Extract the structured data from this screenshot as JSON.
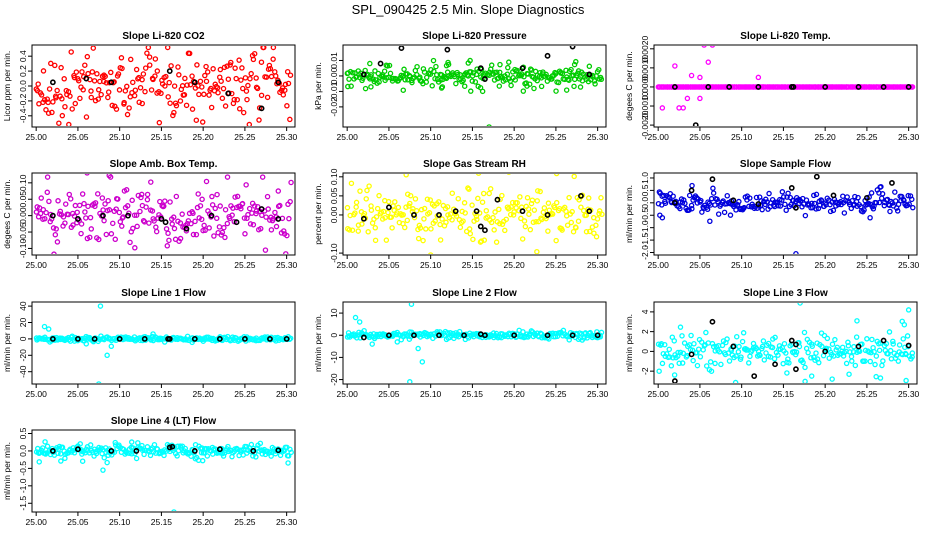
{
  "title": "SPL_090425  2.5 Min. Slope Diagnostics",
  "colors": {
    "axis": "#000000",
    "marker_default": "#000000"
  },
  "chart_data": [
    {
      "type": "scatter",
      "title": "Slope Li-820 CO2",
      "ylabel": "Licor ppm per min.",
      "xlim": [
        24.995,
        25.31
      ],
      "ylim": [
        -0.55,
        0.55
      ],
      "xticks": [
        "25.00",
        "25.05",
        "25.10",
        "25.15",
        "25.20",
        "25.25",
        "25.30"
      ],
      "xtick_values": [
        25.0,
        25.05,
        25.1,
        25.15,
        25.2,
        25.25,
        25.3
      ],
      "yticks": [
        "-0.4",
        "-0.2",
        "0.0",
        "0.2",
        "0.4"
      ],
      "ytick_values": [
        -0.4,
        -0.2,
        0,
        0.2,
        0.4
      ],
      "color": "#ff0000",
      "spread": 0.22,
      "outlier_count": 6,
      "outliers": [],
      "highlight_points": [
        [
          25.02,
          0.05
        ],
        [
          25.06,
          0.1
        ],
        [
          25.09,
          0.05
        ],
        [
          25.16,
          0.2
        ],
        [
          25.19,
          0.05
        ],
        [
          25.23,
          -0.1
        ],
        [
          25.27,
          -0.3
        ],
        [
          25.29,
          0.05
        ]
      ]
    },
    {
      "type": "scatter",
      "title": "Slope Li-820 Pressure",
      "ylabel": "kPa per min.",
      "xlim": [
        24.995,
        25.31
      ],
      "ylim": [
        -0.033,
        0.02
      ],
      "xticks": [
        "25.00",
        "25.05",
        "25.10",
        "25.15",
        "25.20",
        "25.25",
        "25.30"
      ],
      "xtick_values": [
        25.0,
        25.05,
        25.1,
        25.15,
        25.2,
        25.25,
        25.3
      ],
      "yticks": [
        "-0.02",
        "-0.01",
        "0.00",
        "0.01"
      ],
      "ytick_values": [
        -0.02,
        -0.01,
        0,
        0.01
      ],
      "color": "#00cc00",
      "spread": 0.0025,
      "outlier_count": 30,
      "outliers": [
        [
          25.17,
          -0.033
        ]
      ],
      "highlight_points": [
        [
          25.02,
          0.001
        ],
        [
          25.04,
          0.008
        ],
        [
          25.065,
          0.018
        ],
        [
          25.12,
          0.017
        ],
        [
          25.16,
          0.005
        ],
        [
          25.165,
          -0.002
        ],
        [
          25.21,
          0.005
        ],
        [
          25.24,
          0.013
        ],
        [
          25.27,
          0.019
        ],
        [
          25.29,
          0.001
        ]
      ]
    },
    {
      "type": "scatter",
      "title": "Slope Li-820 Temp.",
      "ylabel": "degees C per min.",
      "xlim": [
        24.995,
        25.31
      ],
      "ylim": [
        -0.0021,
        0.0022
      ],
      "xticks": [
        "25.00",
        "25.05",
        "25.10",
        "25.15",
        "25.20",
        "25.25",
        "25.30"
      ],
      "xtick_values": [
        25.0,
        25.05,
        25.1,
        25.15,
        25.2,
        25.25,
        25.3
      ],
      "yticks": [
        "-0.0020",
        "-0.0010",
        "0.0000",
        "0.0010",
        "0.0020"
      ],
      "ytick_values": [
        -0.002,
        -0.001,
        0,
        0.001,
        0.002
      ],
      "color": "#ff00ff",
      "spread": 0.0,
      "outlier_count": 0,
      "outliers": [
        [
          25.005,
          -0.0011
        ],
        [
          25.02,
          0.0011
        ],
        [
          25.035,
          -0.0006
        ],
        [
          25.04,
          0.0006
        ],
        [
          25.025,
          -0.0011
        ],
        [
          25.05,
          0.0005
        ],
        [
          25.06,
          0.0013
        ],
        [
          25.065,
          0.0022
        ],
        [
          25.055,
          0.0022
        ],
        [
          25.05,
          -0.0006
        ],
        [
          25.03,
          -0.0011
        ],
        [
          25.12,
          0.0005
        ]
      ],
      "highlight_points": [
        [
          25.02,
          0.0
        ],
        [
          25.045,
          -0.002
        ],
        [
          25.06,
          0.0
        ],
        [
          25.085,
          0.0
        ],
        [
          25.12,
          0.0
        ],
        [
          25.16,
          0.0
        ],
        [
          25.162,
          0.0
        ],
        [
          25.2,
          0.0
        ],
        [
          25.24,
          0.0
        ],
        [
          25.27,
          0.0
        ],
        [
          25.3,
          0.0
        ]
      ]
    },
    {
      "type": "scatter",
      "title": "Slope Amb. Box Temp.",
      "ylabel": "degees C per min.",
      "xlim": [
        24.995,
        25.31
      ],
      "ylim": [
        -0.12,
        0.13
      ],
      "xticks": [
        "25.00",
        "25.05",
        "25.10",
        "25.15",
        "25.20",
        "25.25",
        "25.30"
      ],
      "xtick_values": [
        25.0,
        25.05,
        25.1,
        25.15,
        25.2,
        25.25,
        25.3
      ],
      "yticks": [
        "-0.10",
        "-0.05",
        "0.00",
        "0.05",
        "0.10"
      ],
      "ytick_values": [
        -0.1,
        -0.05,
        0,
        0.05,
        0.1
      ],
      "color": "#cc00cc",
      "spread": 0.045,
      "outlier_count": 8,
      "outliers": [],
      "highlight_points": [
        [
          25.02,
          0.0
        ],
        [
          25.05,
          -0.01
        ],
        [
          25.08,
          0.0
        ],
        [
          25.11,
          0.0
        ],
        [
          25.15,
          -0.01
        ],
        [
          25.155,
          -0.02
        ],
        [
          25.18,
          -0.04
        ],
        [
          25.21,
          0.0
        ],
        [
          25.24,
          -0.02
        ],
        [
          25.27,
          0.02
        ],
        [
          25.29,
          -0.01
        ]
      ]
    },
    {
      "type": "scatter",
      "title": "Slope Gas Stream RH",
      "ylabel": "percent per min.",
      "xlim": [
        24.995,
        25.31
      ],
      "ylim": [
        -0.105,
        0.11
      ],
      "xticks": [
        "25.00",
        "25.05",
        "25.10",
        "25.15",
        "25.20",
        "25.25",
        "25.30"
      ],
      "xtick_values": [
        25.0,
        25.05,
        25.1,
        25.15,
        25.2,
        25.25,
        25.3
      ],
      "yticks": [
        "-0.10",
        "0.00",
        "0.05",
        "0.10"
      ],
      "ytick_values": [
        -0.1,
        0,
        0.05,
        0.1
      ],
      "color": "#ffff00",
      "spread": 0.03,
      "outlier_count": 6,
      "outliers": [
        [
          25.1,
          -0.105
        ]
      ],
      "highlight_points": [
        [
          25.02,
          -0.01
        ],
        [
          25.05,
          0.02
        ],
        [
          25.08,
          0.0
        ],
        [
          25.11,
          0.0
        ],
        [
          25.13,
          0.01
        ],
        [
          25.155,
          0.01
        ],
        [
          25.16,
          -0.03
        ],
        [
          25.165,
          -0.04
        ],
        [
          25.18,
          0.04
        ],
        [
          25.21,
          0.01
        ],
        [
          25.24,
          0.0
        ],
        [
          25.28,
          0.05
        ],
        [
          25.29,
          0.01
        ]
      ]
    },
    {
      "type": "scatter",
      "title": "Slope Sample Flow",
      "ylabel": "ml/min per min.",
      "xlim": [
        24.995,
        25.31
      ],
      "ylim": [
        -2.1,
        1.2
      ],
      "xticks": [
        "25.00",
        "25.05",
        "25.10",
        "25.15",
        "25.20",
        "25.25",
        "25.30"
      ],
      "xtick_values": [
        25.0,
        25.05,
        25.1,
        25.15,
        25.2,
        25.25,
        25.3
      ],
      "yticks": [
        "-2.0",
        "-1.5",
        "-1.0",
        "-0.5",
        "0.0",
        "0.5",
        "1.0"
      ],
      "ytick_values": [
        -2,
        -1.5,
        -1,
        -0.5,
        0,
        0.5,
        1
      ],
      "color": "#0000dd",
      "spread": 0.2,
      "outlier_count": 4,
      "outliers": [
        [
          25.005,
          -0.6
        ],
        [
          25.002,
          -0.5
        ],
        [
          25.165,
          -2.05
        ]
      ],
      "highlight_points": [
        [
          25.02,
          0.0
        ],
        [
          25.04,
          0.5
        ],
        [
          25.065,
          0.95
        ],
        [
          25.09,
          0.1
        ],
        [
          25.12,
          -0.05
        ],
        [
          25.16,
          0.6
        ],
        [
          25.165,
          -0.2
        ],
        [
          25.19,
          1.05
        ],
        [
          25.21,
          0.3
        ],
        [
          25.25,
          0.2
        ],
        [
          25.28,
          0.8
        ]
      ]
    },
    {
      "type": "scatter",
      "title": "Slope Line 1 Flow",
      "ylabel": "ml/min per min.",
      "xlim": [
        24.995,
        25.31
      ],
      "ylim": [
        -55,
        45
      ],
      "xticks": [
        "25.00",
        "25.05",
        "25.10",
        "25.15",
        "25.20",
        "25.25",
        "25.30"
      ],
      "xtick_values": [
        25.0,
        25.05,
        25.1,
        25.15,
        25.2,
        25.25,
        25.3
      ],
      "yticks": [
        "-40",
        "-20",
        "0",
        "20",
        "40"
      ],
      "ytick_values": [
        -40,
        -20,
        0,
        20,
        40
      ],
      "color": "#00ffff",
      "spread": 1.5,
      "outlier_count": 0,
      "outliers": [
        [
          25.075,
          -55
        ],
        [
          25.077,
          40
        ],
        [
          25.085,
          -20
        ],
        [
          25.09,
          -9
        ],
        [
          25.01,
          15
        ],
        [
          25.015,
          12
        ],
        [
          25.06,
          -6
        ],
        [
          25.14,
          6
        ]
      ],
      "highlight_points": [
        [
          25.02,
          0
        ],
        [
          25.05,
          0
        ],
        [
          25.07,
          0
        ],
        [
          25.1,
          0
        ],
        [
          25.13,
          0
        ],
        [
          25.158,
          0
        ],
        [
          25.16,
          0
        ],
        [
          25.19,
          0
        ],
        [
          25.22,
          0
        ],
        [
          25.25,
          0
        ],
        [
          25.28,
          0
        ],
        [
          25.3,
          0
        ]
      ]
    },
    {
      "type": "scatter",
      "title": "Slope Line 2 Flow",
      "ylabel": "ml/min per min.",
      "xlim": [
        24.995,
        25.31
      ],
      "ylim": [
        -22,
        15
      ],
      "xticks": [
        "25.00",
        "25.05",
        "25.10",
        "25.15",
        "25.20",
        "25.25",
        "25.30"
      ],
      "xtick_values": [
        25.0,
        25.05,
        25.1,
        25.15,
        25.2,
        25.25,
        25.3
      ],
      "yticks": [
        "-20",
        "-10",
        "0",
        "10"
      ],
      "ytick_values": [
        -20,
        -10,
        0,
        10
      ],
      "color": "#00ffff",
      "spread": 0.8,
      "outlier_count": 0,
      "outliers": [
        [
          25.075,
          -21
        ],
        [
          25.077,
          14
        ],
        [
          25.09,
          -12
        ],
        [
          25.085,
          -6
        ],
        [
          25.01,
          8
        ],
        [
          25.015,
          6
        ],
        [
          25.06,
          -3
        ],
        [
          25.03,
          -4
        ]
      ],
      "highlight_points": [
        [
          25.02,
          -1
        ],
        [
          25.05,
          0
        ],
        [
          25.08,
          0
        ],
        [
          25.11,
          0
        ],
        [
          25.14,
          0
        ],
        [
          25.16,
          0.5
        ],
        [
          25.165,
          0
        ],
        [
          25.2,
          0
        ],
        [
          25.24,
          0
        ],
        [
          25.27,
          0
        ],
        [
          25.3,
          0
        ]
      ]
    },
    {
      "type": "scatter",
      "title": "Slope Line 3 Flow",
      "ylabel": "ml/min per min.",
      "xlim": [
        24.995,
        25.31
      ],
      "ylim": [
        -3.3,
        5
      ],
      "xticks": [
        "25.00",
        "25.05",
        "25.10",
        "25.15",
        "25.20",
        "25.25",
        "25.30"
      ],
      "xtick_values": [
        25.0,
        25.05,
        25.1,
        25.15,
        25.2,
        25.25,
        25.3
      ],
      "yticks": [
        "-2",
        "0",
        "2",
        "4"
      ],
      "ytick_values": [
        -2,
        0,
        2,
        4
      ],
      "color": "#00ffff",
      "spread": 0.8,
      "outlier_count": 14,
      "outliers": [
        [
          25.17,
          4.9
        ],
        [
          25.3,
          4.2
        ]
      ],
      "highlight_points": [
        [
          25.02,
          -3
        ],
        [
          25.04,
          -0.3
        ],
        [
          25.065,
          3
        ],
        [
          25.09,
          0.5
        ],
        [
          25.115,
          -2.5
        ],
        [
          25.14,
          -1.3
        ],
        [
          25.16,
          1.1
        ],
        [
          25.165,
          0.7
        ],
        [
          25.165,
          -1.8
        ],
        [
          25.2,
          0.0
        ],
        [
          25.24,
          0.5
        ],
        [
          25.27,
          1.1
        ],
        [
          25.3,
          0.6
        ]
      ]
    },
    {
      "type": "scatter",
      "title": "Slope Line 4 (LT) Flow",
      "ylabel": "ml/min per min.",
      "xlim": [
        24.995,
        25.31
      ],
      "ylim": [
        -1.75,
        0.6
      ],
      "xticks": [
        "25.00",
        "25.05",
        "25.10",
        "25.15",
        "25.20",
        "25.25",
        "25.30"
      ],
      "xtick_values": [
        25.0,
        25.05,
        25.1,
        25.15,
        25.2,
        25.25,
        25.3
      ],
      "yticks": [
        "-1.5",
        "-1.0",
        "-0.5",
        "0.0",
        "0.5"
      ],
      "ytick_values": [
        -1.5,
        -1,
        -0.5,
        0,
        0.5
      ],
      "color": "#00ffff",
      "spread": 0.09,
      "outlier_count": 8,
      "outliers": [
        [
          25.165,
          -1.75
        ],
        [
          25.08,
          -0.55
        ]
      ],
      "highlight_points": [
        [
          25.02,
          0.0
        ],
        [
          25.05,
          0.05
        ],
        [
          25.09,
          0.0
        ],
        [
          25.12,
          0.0
        ],
        [
          25.16,
          0.1
        ],
        [
          25.163,
          0.12
        ],
        [
          25.19,
          0.0
        ],
        [
          25.22,
          0.05
        ],
        [
          25.26,
          0.0
        ],
        [
          25.29,
          0.02
        ]
      ]
    }
  ]
}
